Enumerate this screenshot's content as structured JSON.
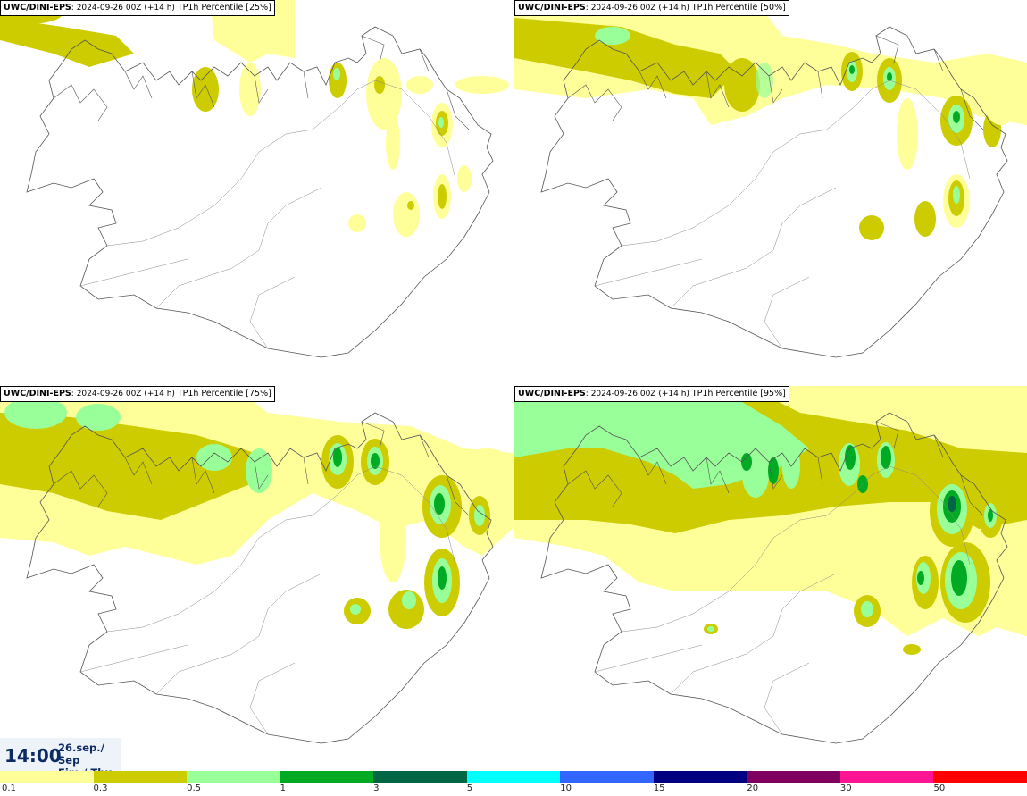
{
  "panels": [
    {
      "model": "UWC/DINI-EPS",
      "run": "2024-09-26 00Z (+14 h)",
      "product": "TP1h Percentile [25%]"
    },
    {
      "model": "UWC/DINI-EPS",
      "run": "2024-09-26 00Z (+14 h)",
      "product": "TP1h Percentile [50%]"
    },
    {
      "model": "UWC/DINI-EPS",
      "run": "2024-09-26 00Z (+14 h)",
      "product": "TP1h Percentile [75%]"
    },
    {
      "model": "UWC/DINI-EPS",
      "run": "2024-09-26 00Z (+14 h)",
      "product": "TP1h Percentile [95%]"
    }
  ],
  "valid_time": {
    "time": "14:00",
    "date": "26.sep./ Sep",
    "weekday": "Fim./ Thu"
  },
  "legend": {
    "colors": [
      "#ffff99",
      "#cccc00",
      "#99ff99",
      "#00aa22",
      "#006644",
      "#00ffff",
      "#3366ff",
      "#000080",
      "#800060",
      "#ff1493",
      "#ff0000"
    ],
    "ticks": [
      "0.1",
      "0.3",
      "0.5",
      "1",
      "3",
      "5",
      "10",
      "15",
      "20",
      "30",
      "50"
    ]
  }
}
